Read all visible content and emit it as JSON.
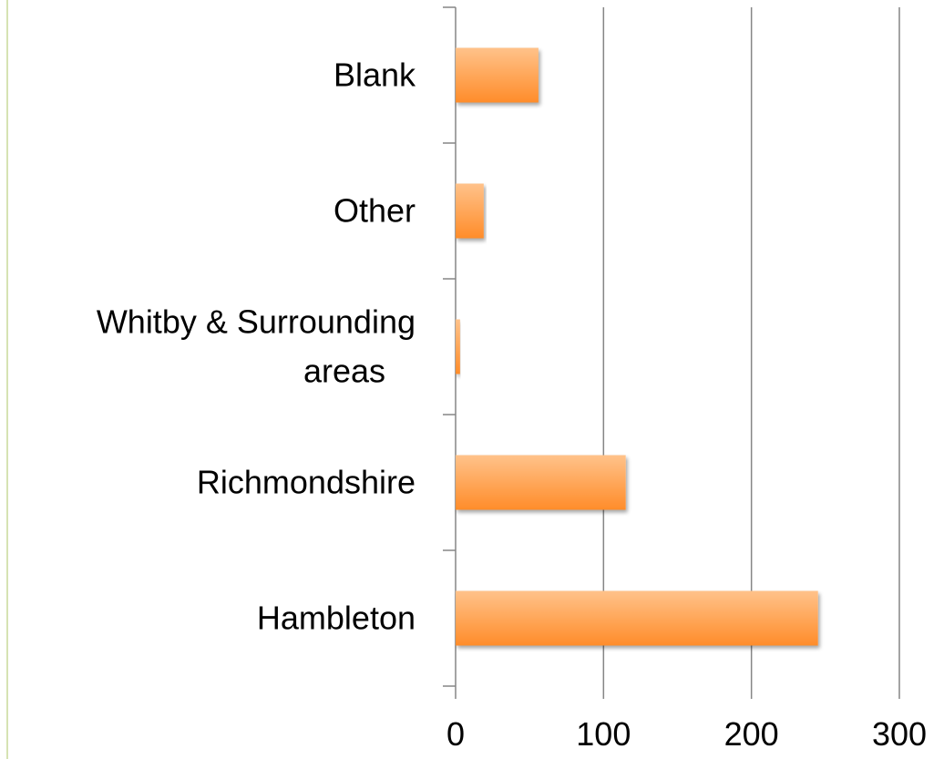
{
  "chart_data": {
    "type": "bar",
    "orientation": "horizontal",
    "categories": [
      "Hambleton",
      "Richmondshire",
      "Whitby & Surrounding areas",
      "Other",
      "Blank"
    ],
    "category_lines": [
      [
        "Hambleton"
      ],
      [
        "Richmondshire"
      ],
      [
        "Whitby & Surrounding",
        "areas"
      ],
      [
        "Other"
      ],
      [
        "Blank"
      ]
    ],
    "values": [
      245,
      115,
      3,
      19,
      56
    ],
    "xlim": [
      0,
      300
    ],
    "xticks": [
      0,
      100,
      200,
      300
    ],
    "xtick_labels": [
      "0",
      "100",
      "200",
      "300"
    ],
    "title": "",
    "xlabel": "",
    "ylabel": "",
    "grid": "vertical",
    "legend": "none",
    "colors": {
      "bar_top": "#ffc28a",
      "bar_bottom": "#ff8c2a",
      "gridline": "#868686",
      "axis": "#868686",
      "left_rule": "#d6e3b3"
    }
  }
}
